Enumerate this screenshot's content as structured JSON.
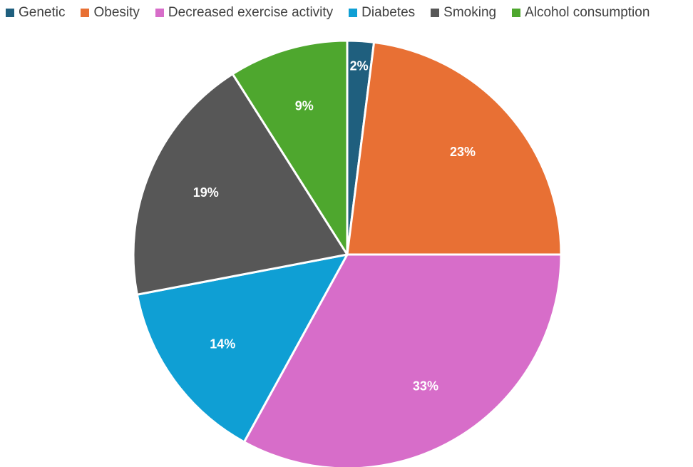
{
  "chart_data": {
    "type": "pie",
    "title": "",
    "legend_position": "top",
    "slices": [
      {
        "name": "Genetic",
        "value": 2,
        "label": "2%",
        "color": "#1f5f7e"
      },
      {
        "name": "Obesity",
        "value": 23,
        "label": "23%",
        "color": "#e87034"
      },
      {
        "name": "Decreased exercise activity",
        "value": 33,
        "label": "33%",
        "color": "#d76dc9"
      },
      {
        "name": "Diabetes",
        "value": 14,
        "label": "14%",
        "color": "#0f9fd4"
      },
      {
        "name": "Smoking",
        "value": 19,
        "label": "19%",
        "color": "#575757"
      },
      {
        "name": "Alcohol consumption",
        "value": 9,
        "label": "9%",
        "color": "#4ea72e"
      }
    ]
  }
}
